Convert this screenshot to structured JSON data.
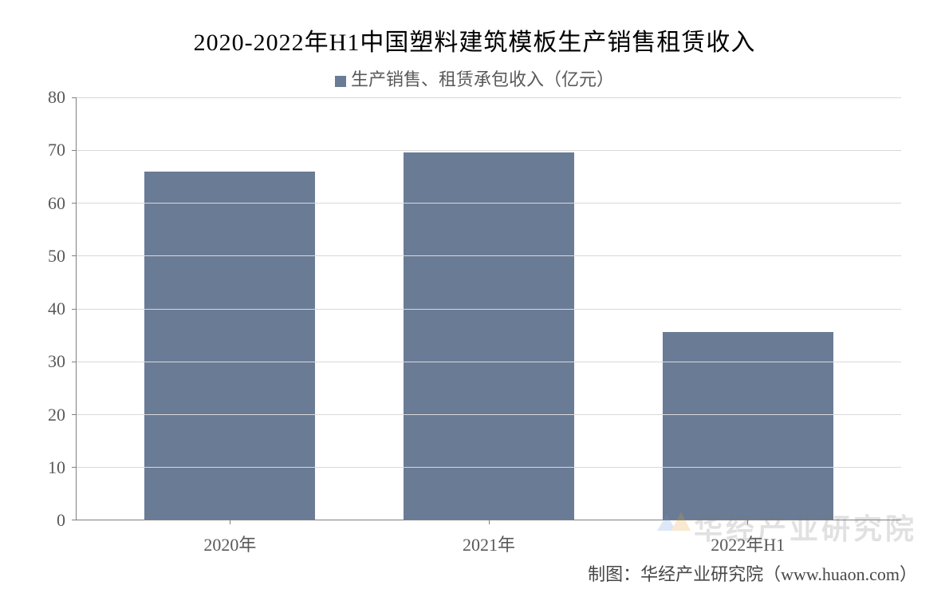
{
  "chart": {
    "type": "bar",
    "title": "2020-2022年H1中国塑料建筑模板生产销售租赁收入",
    "legend_label": "生产销售、租赁承包收入（亿元）",
    "categories": [
      "2020年",
      "2021年",
      "2022年H1"
    ],
    "values": [
      66,
      69.5,
      35.5
    ],
    "bar_color": "#6a7b95",
    "legend_marker_color": "#6a7b95",
    "ylim": [
      0,
      80
    ],
    "ytick_step": 10,
    "yticks": [
      0,
      10,
      20,
      30,
      40,
      50,
      60,
      70,
      80
    ],
    "grid_color": "#d9d9d9",
    "axis_color": "#808080",
    "background_color": "#ffffff",
    "title_fontsize": 30,
    "label_fontsize": 22,
    "bar_width_ratio": 0.66,
    "text_color": "#595959"
  },
  "footer": {
    "text": "制图：华经产业研究院（www.huaon.com）"
  },
  "watermark": {
    "text": "华经产业研究院"
  }
}
